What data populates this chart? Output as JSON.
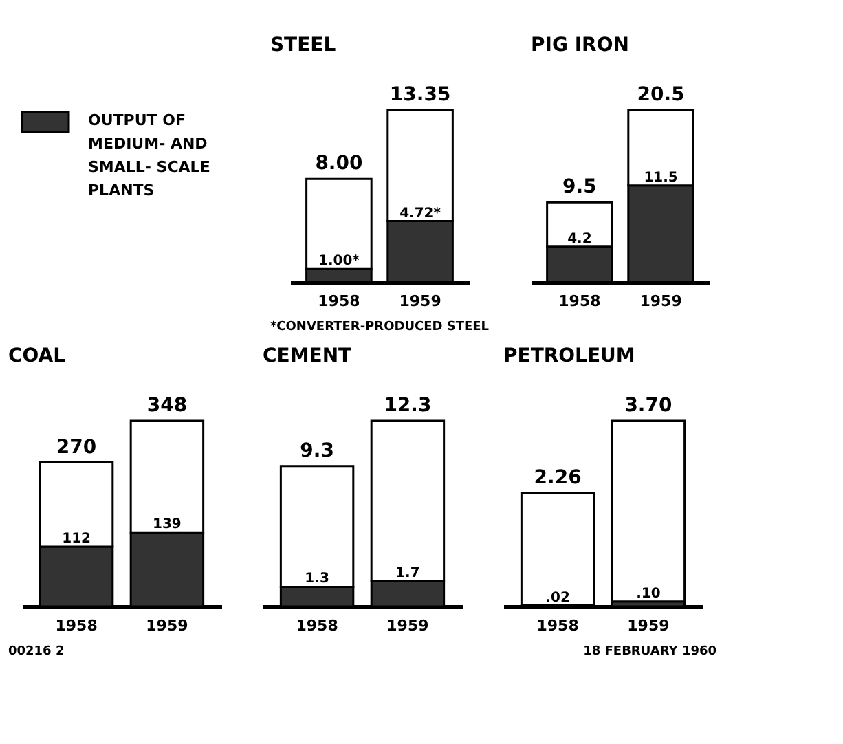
{
  "chart_data": [
    {
      "type": "bar",
      "title": "STEEL",
      "categories": [
        "1958",
        "1959"
      ],
      "stacked": true,
      "legend": "left",
      "totals": [
        "8.00",
        "13.35"
      ],
      "annotations": [
        "*CONVERTER-PRODUCED STEEL"
      ],
      "series": [
        {
          "name": "OUTPUT OF MEDIUM- AND SMALL- SCALE PLANTS",
          "color": "#333333",
          "values": [
            1.0,
            4.72
          ],
          "value_labels": [
            "1.00*",
            "4.72*"
          ]
        },
        {
          "color": "#ffffff",
          "values": [
            7.0,
            8.63
          ]
        }
      ]
    },
    {
      "type": "bar",
      "title": "PIG IRON",
      "categories": [
        "1958",
        "1959"
      ],
      "stacked": true,
      "totals": [
        "9.5",
        "20.5"
      ],
      "series": [
        {
          "color": "#333333",
          "values": [
            4.2,
            11.5
          ],
          "value_labels": [
            "4.2",
            "11.5"
          ]
        },
        {
          "color": "#ffffff",
          "values": [
            5.3,
            9.0
          ]
        }
      ]
    },
    {
      "type": "bar",
      "title": "COAL",
      "categories": [
        "1958",
        "1959"
      ],
      "stacked": true,
      "totals": [
        "270",
        "348"
      ],
      "annotations": [
        "00216 2"
      ],
      "series": [
        {
          "color": "#333333",
          "values": [
            112,
            139
          ],
          "value_labels": [
            "112",
            "139"
          ]
        },
        {
          "color": "#ffffff",
          "values": [
            158,
            209
          ]
        }
      ]
    },
    {
      "type": "bar",
      "title": "CEMENT",
      "categories": [
        "1958",
        "1959"
      ],
      "stacked": true,
      "totals": [
        "9.3",
        "12.3"
      ],
      "series": [
        {
          "color": "#333333",
          "values": [
            1.3,
            1.7
          ],
          "value_labels": [
            "1.3",
            "1.7"
          ]
        },
        {
          "color": "#ffffff",
          "values": [
            8.0,
            10.6
          ]
        }
      ]
    },
    {
      "type": "bar",
      "title": "PETROLEUM",
      "categories": [
        "1958",
        "1959"
      ],
      "stacked": true,
      "totals": [
        "2.26",
        "3.70"
      ],
      "annotations": [
        "18 FEBRUARY 1960"
      ],
      "series": [
        {
          "color": "#333333",
          "values": [
            0.02,
            0.1
          ],
          "value_labels": [
            ".02",
            ".10"
          ]
        },
        {
          "color": "#ffffff",
          "values": [
            2.24,
            3.6
          ]
        }
      ]
    }
  ]
}
